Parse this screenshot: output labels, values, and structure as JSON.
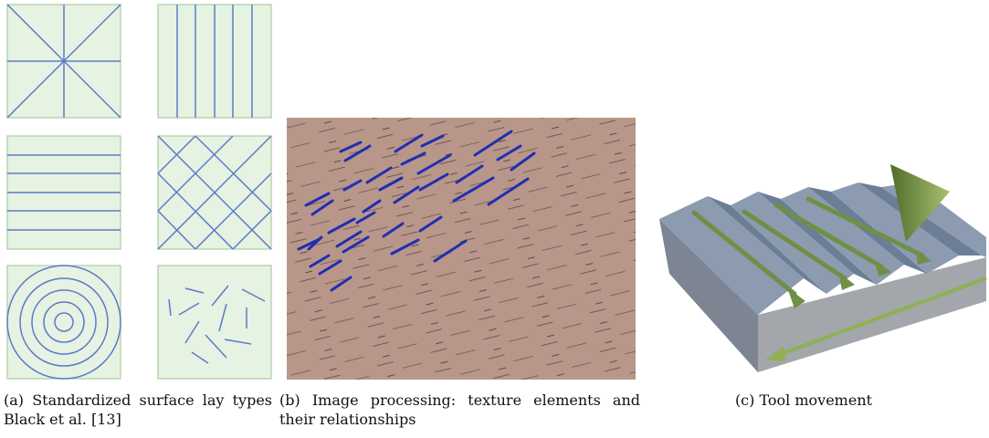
{
  "captions": {
    "a": "(a) Standardized surface lay types Black et al. [13]",
    "b": "(b) Image processing: texture elements and their relationships",
    "c": "(c) Tool movement"
  }
}
